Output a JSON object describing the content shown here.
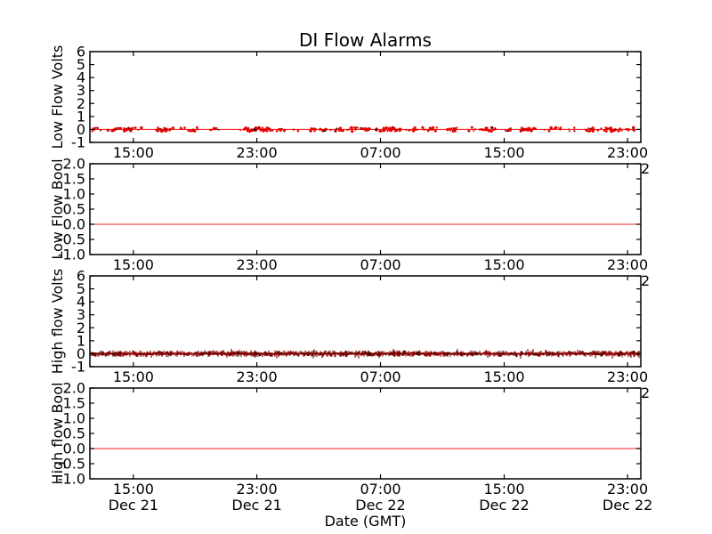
{
  "figure": {
    "title": "DI Flow Alarms",
    "xlabel": "Date (GMT)",
    "background_color": "#ffffff",
    "axis_color": "#000000"
  },
  "x_axis": {
    "label": "Date (GMT)",
    "timezone": "GMT",
    "ticks": [
      {
        "time": "15:00",
        "date": "Dec 21",
        "fraction": 0.079
      },
      {
        "time": "23:00",
        "date": "Dec 21",
        "fraction": 0.303
      },
      {
        "time": "07:00",
        "date": "Dec 22",
        "fraction": 0.5275
      },
      {
        "time": "15:00",
        "date": "Dec 22",
        "fraction": 0.752
      },
      {
        "time": "23:00",
        "date": "Dec 22",
        "fraction": 0.976
      }
    ],
    "clipped_right_edge_label": "2",
    "range_note": "Dec 21 ~12:00 GMT to Dec 22 ~23:50 GMT"
  },
  "chart_data": [
    {
      "id": "low-flow-volts",
      "type": "line",
      "ylabel": "Low Flow Volts",
      "ylim": [
        -1,
        6
      ],
      "yticks": [
        6,
        5,
        4,
        3,
        2,
        1,
        0,
        -1
      ],
      "ytick_labels": [
        "6",
        "5",
        "4",
        "3",
        "2",
        "1",
        "0",
        "-1"
      ],
      "xtick_labels": [
        "15:00",
        "23:00",
        "07:00",
        "15:00",
        "23:00"
      ],
      "series": [
        {
          "name": "Low Flow Volts",
          "color": "#ff0000",
          "style": "sparse-noise",
          "baseline_value": 0,
          "noise_amplitude_volts": 0.15,
          "summary": "constant ~0 V across full range with sparse red noise dots"
        }
      ]
    },
    {
      "id": "low-flow-bool",
      "type": "line",
      "ylabel": "Low Flow Bool",
      "ylim": [
        -1,
        2
      ],
      "yticks": [
        2.0,
        1.5,
        1.0,
        0.5,
        0.0,
        -0.5,
        -1.0
      ],
      "ytick_labels": [
        "2.0",
        "1.5",
        "1.0",
        "0.5",
        "0.0",
        "-0.5",
        "-1.0"
      ],
      "xtick_labels": [
        "15:00",
        "23:00",
        "07:00",
        "15:00",
        "23:00"
      ],
      "series": [
        {
          "name": "Low Flow Bool",
          "color": "#f04f4f",
          "style": "flat",
          "value": 0,
          "summary": "constant 0 (false) for entire range"
        }
      ]
    },
    {
      "id": "high-flow-volts",
      "type": "line",
      "ylabel": "High flow Volts",
      "ylim": [
        -1,
        6
      ],
      "yticks": [
        6,
        5,
        4,
        3,
        2,
        1,
        0,
        -1
      ],
      "ytick_labels": [
        "6",
        "5",
        "4",
        "3",
        "2",
        "1",
        "0",
        "-1"
      ],
      "xtick_labels": [
        "15:00",
        "23:00",
        "07:00",
        "15:00",
        "23:00"
      ],
      "series": [
        {
          "name": "High flow Volts",
          "color": "#7c0101",
          "style": "dense-noise",
          "baseline_value": 0,
          "noise_amplitude_volts": 0.25,
          "summary": "constant ~0 V with dense dark-red noise band across full range"
        }
      ]
    },
    {
      "id": "high-flow-bool",
      "type": "line",
      "ylabel": "High flow Bool",
      "ylim": [
        -1,
        2
      ],
      "yticks": [
        2.0,
        1.5,
        1.0,
        0.5,
        0.0,
        -0.5,
        -1.0
      ],
      "ytick_labels": [
        "2.0",
        "1.5",
        "1.0",
        "0.5",
        "0.0",
        "-0.5",
        "-1.0"
      ],
      "xtick_labels": [
        "15:00",
        "23:00",
        "07:00",
        "15:00",
        "23:00"
      ],
      "series": [
        {
          "name": "High flow Bool",
          "color": "#f04f4f",
          "style": "flat",
          "value": 0,
          "summary": "constant 0 (false) for entire range"
        }
      ]
    }
  ]
}
